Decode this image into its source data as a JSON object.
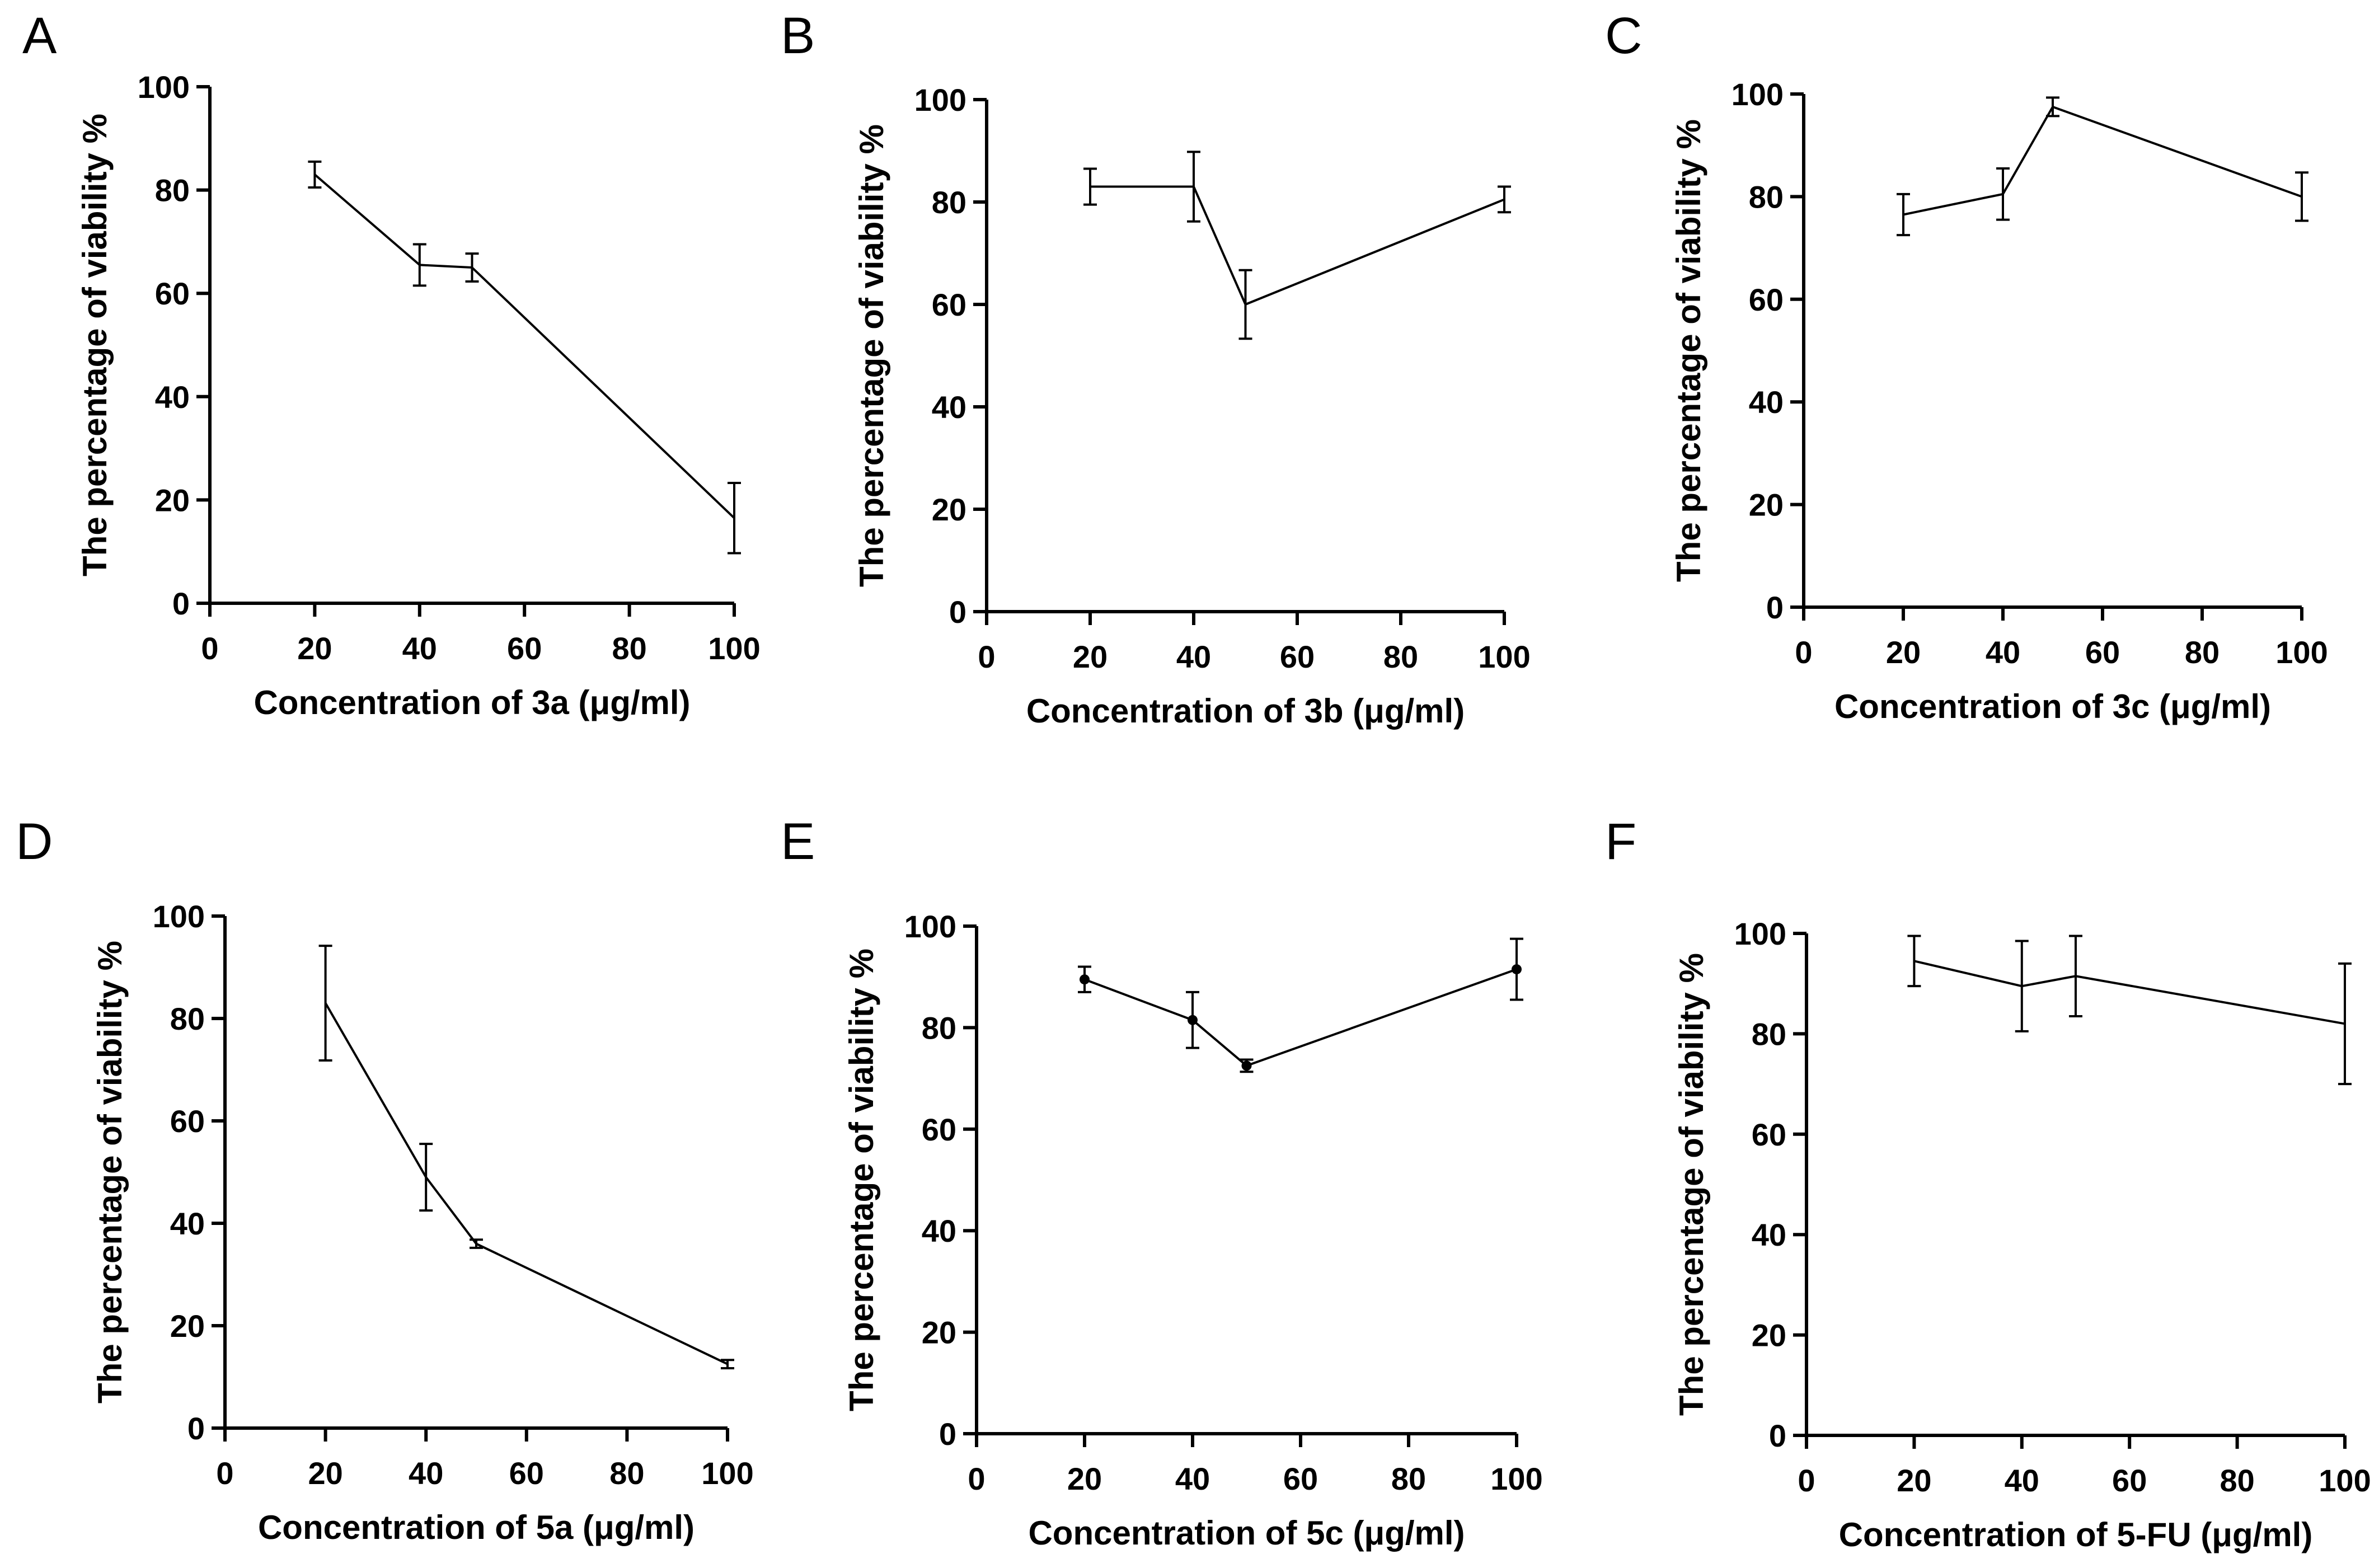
{
  "chart_data": [
    {
      "panel": "A",
      "type": "line",
      "xlabel": "Concentration of 3a (μg/ml)",
      "ylabel": "The percentage of viability %",
      "xlim": [
        0,
        100
      ],
      "ylim": [
        0,
        100
      ],
      "xticks": [
        0,
        20,
        40,
        60,
        80,
        100
      ],
      "yticks": [
        0,
        20,
        40,
        60,
        80,
        100
      ],
      "markers": false,
      "x": [
        20,
        40,
        50,
        100
      ],
      "y": [
        83,
        65.5,
        65,
        16.5
      ],
      "err": [
        2.5,
        4,
        2.7,
        6.8
      ]
    },
    {
      "panel": "B",
      "type": "line",
      "xlabel": "Concentration of 3b (μg/ml)",
      "ylabel": "The percentage of viability %",
      "xlim": [
        0,
        100
      ],
      "ylim": [
        0,
        100
      ],
      "xticks": [
        0,
        20,
        40,
        60,
        80,
        100
      ],
      "yticks": [
        0,
        20,
        40,
        60,
        80,
        100
      ],
      "markers": false,
      "x": [
        20,
        40,
        50,
        100
      ],
      "y": [
        83,
        83,
        60,
        80.5
      ],
      "err": [
        3.5,
        6.8,
        6.7,
        2.5
      ]
    },
    {
      "panel": "C",
      "type": "line",
      "xlabel": "Concentration of 3c (μg/ml)",
      "ylabel": "The percentage of viability %",
      "xlim": [
        0,
        100
      ],
      "ylim": [
        0,
        100
      ],
      "xticks": [
        0,
        20,
        40,
        60,
        80,
        100
      ],
      "yticks": [
        0,
        20,
        40,
        60,
        80,
        100
      ],
      "markers": false,
      "x": [
        20,
        40,
        50,
        100
      ],
      "y": [
        76.5,
        80.5,
        97.5,
        80
      ],
      "err": [
        4,
        5,
        1.8,
        4.7
      ]
    },
    {
      "panel": "D",
      "type": "line",
      "xlabel": "Concentration of 5a (μg/ml)",
      "ylabel": "The percentage of viability %",
      "xlim": [
        0,
        100
      ],
      "ylim": [
        0,
        100
      ],
      "xticks": [
        0,
        20,
        40,
        60,
        80,
        100
      ],
      "yticks": [
        0,
        20,
        40,
        60,
        80,
        100
      ],
      "markers": false,
      "x": [
        20,
        40,
        50,
        100
      ],
      "y": [
        83,
        49,
        36,
        12.5
      ],
      "err": [
        11.2,
        6.5,
        0.8,
        0.8
      ]
    },
    {
      "panel": "E",
      "type": "line",
      "xlabel": "Concentration of 5c (μg/ml)",
      "ylabel": "The percentage of viability %",
      "xlim": [
        0,
        100
      ],
      "ylim": [
        0,
        100
      ],
      "xticks": [
        0,
        20,
        40,
        60,
        80,
        100
      ],
      "yticks": [
        0,
        20,
        40,
        60,
        80,
        100
      ],
      "markers": true,
      "x": [
        20,
        40,
        50,
        100
      ],
      "y": [
        89.5,
        81.5,
        72.5,
        91.5
      ],
      "err": [
        2.5,
        5.5,
        1.2,
        6
      ]
    },
    {
      "panel": "F",
      "type": "line",
      "xlabel": "Concentration of 5-FU (μg/ml)",
      "ylabel": "The percentage of viability %",
      "xlim": [
        0,
        100
      ],
      "ylim": [
        0,
        100
      ],
      "xticks": [
        0,
        20,
        40,
        60,
        80,
        100
      ],
      "yticks": [
        0,
        20,
        40,
        60,
        80,
        100
      ],
      "markers": false,
      "x": [
        20,
        40,
        50,
        100
      ],
      "y": [
        94.5,
        89.5,
        91.5,
        82
      ],
      "err": [
        5,
        9,
        8,
        12
      ]
    }
  ]
}
